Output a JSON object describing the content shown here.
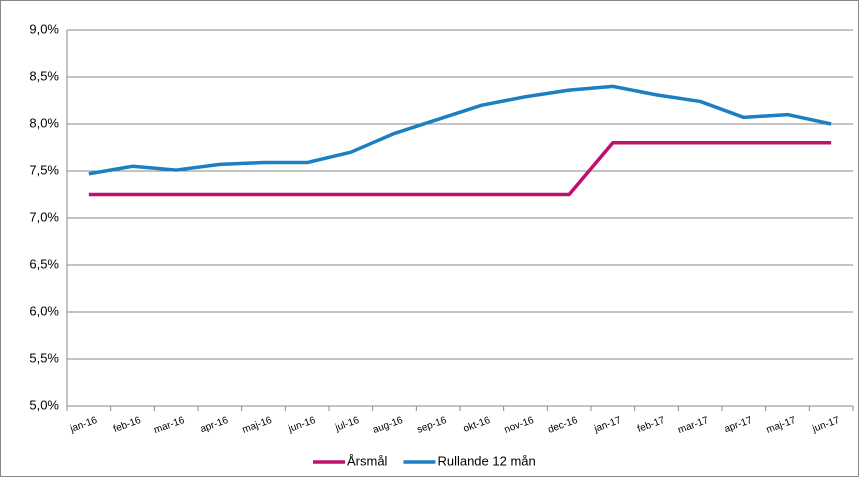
{
  "chart_data": {
    "type": "line",
    "categories": [
      "jan-16",
      "feb-16",
      "mar-16",
      "apr-16",
      "maj-16",
      "jun-16",
      "jul-16",
      "aug-16",
      "sep-16",
      "okt-16",
      "nov-16",
      "dec-16",
      "jan-17",
      "feb-17",
      "mar-17",
      "apr-17",
      "maj-17",
      "jun-17"
    ],
    "series": [
      {
        "name": "Årsmål",
        "color": "#c0106e",
        "values": [
          7.25,
          7.25,
          7.25,
          7.25,
          7.25,
          7.25,
          7.25,
          7.25,
          7.25,
          7.25,
          7.25,
          7.25,
          7.8,
          7.8,
          7.8,
          7.8,
          7.8,
          7.8
        ]
      },
      {
        "name": "Rullande 12 mån",
        "color": "#1b7fc2",
        "values": [
          7.47,
          7.55,
          7.51,
          7.57,
          7.59,
          7.59,
          7.7,
          7.9,
          8.05,
          8.2,
          8.29,
          8.36,
          8.4,
          8.31,
          8.24,
          8.07,
          8.1,
          8.0
        ]
      }
    ],
    "ylim": [
      5.0,
      9.0
    ],
    "yticks": [
      {
        "value": 5.0,
        "label": "5,0%"
      },
      {
        "value": 5.5,
        "label": "5,5%"
      },
      {
        "value": 6.0,
        "label": "6,0%"
      },
      {
        "value": 6.5,
        "label": "6,5%"
      },
      {
        "value": 7.0,
        "label": "7,0%"
      },
      {
        "value": 7.5,
        "label": "7,5%"
      },
      {
        "value": 8.0,
        "label": "8,0%"
      },
      {
        "value": 8.5,
        "label": "8,5%"
      },
      {
        "value": 9.0,
        "label": "9,0%"
      }
    ],
    "grid": true,
    "legend": "bottom"
  }
}
